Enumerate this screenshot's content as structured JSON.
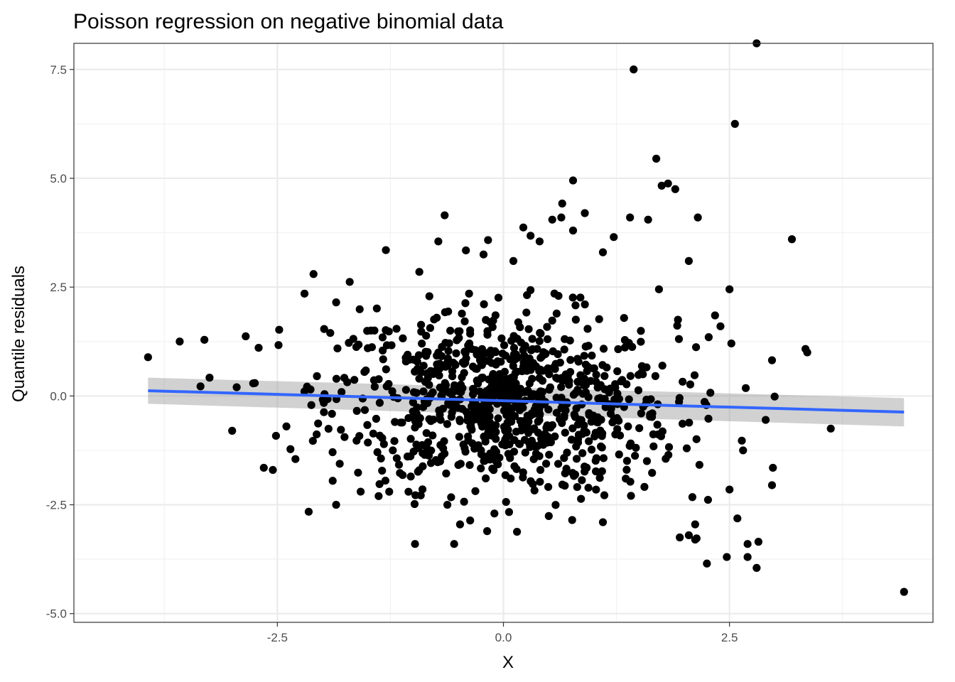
{
  "chart_data": {
    "type": "scatter",
    "title": "Poisson regression on negative binomial data",
    "xlabel": "X",
    "ylabel": "Quantile residuals",
    "xlim": [
      -4.75,
      4.75
    ],
    "ylim": [
      -5.2,
      8.1
    ],
    "x_ticks": [
      -2.5,
      0.0,
      2.5
    ],
    "x_tick_labels": [
      "-2.5",
      "0.0",
      "2.5"
    ],
    "y_ticks": [
      -5.0,
      -2.5,
      0.0,
      2.5,
      5.0,
      7.5
    ],
    "y_tick_labels": [
      "-5.0",
      "-2.5",
      "0.0",
      "2.5",
      "5.0",
      "7.5"
    ],
    "grid": true,
    "theme": "bw",
    "point_color": "#000000",
    "smooth": {
      "method": "lm",
      "color": "#3366FF",
      "ribbon_color": "#999999",
      "x": [
        -3.93,
        4.43
      ],
      "y": [
        0.12,
        -0.37
      ],
      "ci_lower": [
        -0.18,
        -0.7
      ],
      "ci_upper": [
        0.42,
        -0.05
      ]
    },
    "highlighted_points": [
      {
        "x": -3.93,
        "y": 0.89
      },
      {
        "x": -3.58,
        "y": 1.25
      },
      {
        "x": -3.35,
        "y": 0.22
      },
      {
        "x": -3.25,
        "y": 0.42
      },
      {
        "x": -3.0,
        "y": -0.8
      },
      {
        "x": -2.95,
        "y": 0.2
      },
      {
        "x": -2.85,
        "y": 1.37
      },
      {
        "x": -2.65,
        "y": -1.65
      },
      {
        "x": -2.55,
        "y": -1.7
      },
      {
        "x": -2.4,
        "y": -0.7
      },
      {
        "x": -2.48,
        "y": 1.52
      },
      {
        "x": -2.3,
        "y": -1.45
      },
      {
        "x": -2.2,
        "y": 2.35
      },
      {
        "x": -2.1,
        "y": 2.8
      },
      {
        "x": -1.85,
        "y": 2.15
      },
      {
        "x": -1.7,
        "y": 2.62
      },
      {
        "x": -1.85,
        "y": -2.5
      },
      {
        "x": -1.4,
        "y": 2.01
      },
      {
        "x": -1.3,
        "y": 3.35
      },
      {
        "x": -1.38,
        "y": -2.3
      },
      {
        "x": -1.05,
        "y": -2.2
      },
      {
        "x": -0.93,
        "y": 2.85
      },
      {
        "x": -0.65,
        "y": 4.15
      },
      {
        "x": -0.72,
        "y": 3.55
      },
      {
        "x": -0.62,
        "y": -2.5
      },
      {
        "x": -0.48,
        "y": -2.95
      },
      {
        "x": -0.38,
        "y": 2.35
      },
      {
        "x": -0.22,
        "y": 3.25
      },
      {
        "x": -0.17,
        "y": 3.58
      },
      {
        "x": -0.1,
        "y": -2.7
      },
      {
        "x": 0.11,
        "y": 3.1
      },
      {
        "x": 0.15,
        "y": -3.12
      },
      {
        "x": 0.22,
        "y": 3.87
      },
      {
        "x": 0.3,
        "y": 3.68
      },
      {
        "x": 0.4,
        "y": 3.55
      },
      {
        "x": 0.54,
        "y": 4.05
      },
      {
        "x": 0.65,
        "y": 4.42
      },
      {
        "x": 0.64,
        "y": 4.1
      },
      {
        "x": 0.77,
        "y": 4.95
      },
      {
        "x": 0.77,
        "y": 3.8
      },
      {
        "x": 0.9,
        "y": 4.2
      },
      {
        "x": 0.76,
        "y": -2.85
      },
      {
        "x": 1.1,
        "y": -2.9
      },
      {
        "x": 1.1,
        "y": 3.3
      },
      {
        "x": 1.22,
        "y": 3.65
      },
      {
        "x": 1.4,
        "y": 4.1
      },
      {
        "x": 1.44,
        "y": 7.5
      },
      {
        "x": 1.6,
        "y": 4.05
      },
      {
        "x": 1.69,
        "y": 5.45
      },
      {
        "x": 1.75,
        "y": 4.83
      },
      {
        "x": 1.82,
        "y": 4.88
      },
      {
        "x": 1.9,
        "y": 4.75
      },
      {
        "x": 1.72,
        "y": 2.45
      },
      {
        "x": 2.05,
        "y": 3.1
      },
      {
        "x": 2.15,
        "y": 4.1
      },
      {
        "x": 2.56,
        "y": 6.25
      },
      {
        "x": 2.8,
        "y": 8.1
      },
      {
        "x": 3.19,
        "y": 3.6
      },
      {
        "x": 3.34,
        "y": 1.08
      },
      {
        "x": 3.36,
        "y": 1.0
      },
      {
        "x": 2.5,
        "y": 2.45
      },
      {
        "x": 2.4,
        "y": 1.6
      },
      {
        "x": 2.34,
        "y": 1.85
      },
      {
        "x": 2.97,
        "y": 0.82
      },
      {
        "x": 3.62,
        "y": -0.75
      },
      {
        "x": 2.9,
        "y": -0.55
      },
      {
        "x": 2.98,
        "y": -1.65
      },
      {
        "x": 2.97,
        "y": -2.05
      },
      {
        "x": 2.65,
        "y": -1.25
      },
      {
        "x": 2.68,
        "y": 0.18
      },
      {
        "x": 2.5,
        "y": -2.15
      },
      {
        "x": 2.25,
        "y": -3.85
      },
      {
        "x": 2.47,
        "y": -3.7
      },
      {
        "x": 2.7,
        "y": -3.4
      },
      {
        "x": 2.82,
        "y": -3.35
      },
      {
        "x": 2.7,
        "y": -3.7
      },
      {
        "x": 2.8,
        "y": -3.95
      },
      {
        "x": 4.43,
        "y": -4.5
      },
      {
        "x": 2.12,
        "y": -3.3
      },
      {
        "x": 2.05,
        "y": -3.2
      },
      {
        "x": 1.95,
        "y": -3.25
      },
      {
        "x": 2.12,
        "y": -2.95
      },
      {
        "x": 1.93,
        "y": 1.75
      },
      {
        "x": 2.13,
        "y": 1.12
      },
      {
        "x": 2.27,
        "y": 1.35
      }
    ]
  }
}
